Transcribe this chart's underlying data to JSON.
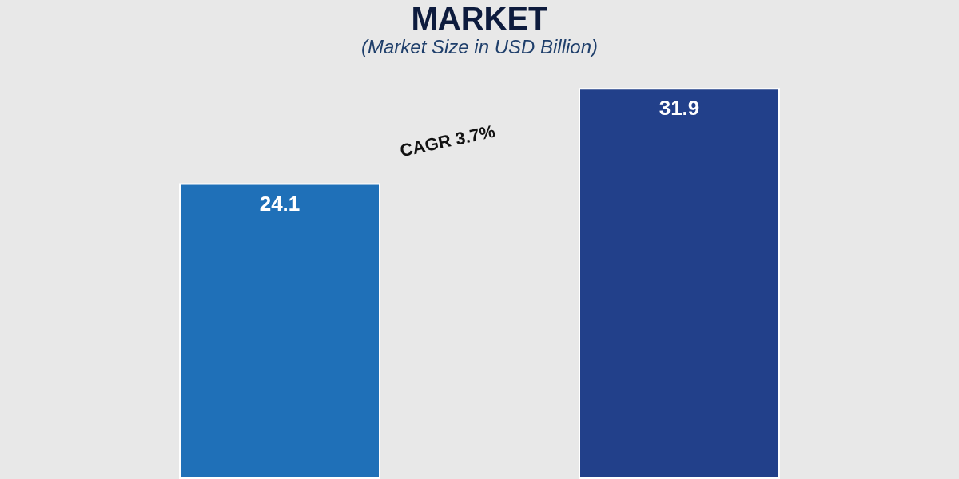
{
  "chart_data": {
    "type": "bar",
    "title": "MARKET",
    "subtitle": "(Market Size in USD Billion)",
    "categories": [
      null,
      null
    ],
    "values": [
      24.1,
      31.9
    ],
    "colors": [
      "#1f70b8",
      "#22408a"
    ],
    "data_labels": true,
    "annotations": [
      "CAGR 3.7%"
    ]
  }
}
